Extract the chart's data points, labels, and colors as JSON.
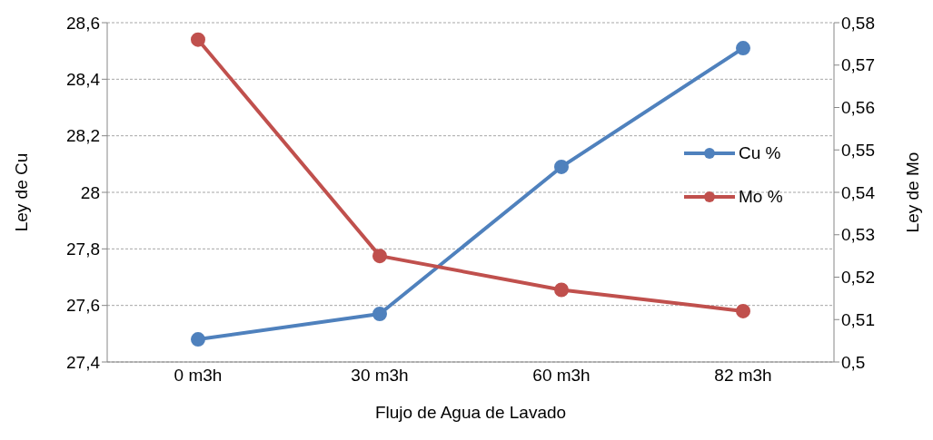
{
  "chart_data": {
    "type": "line",
    "xlabel": "Flujo de Agua de Lavado",
    "ylabel": "Ley de Cu",
    "y2label": "Ley de Mo",
    "categories": [
      "0 m3h",
      "30 m3h",
      "60 m3h",
      "82 m3h"
    ],
    "series": [
      {
        "name": "Cu %",
        "color": "#4f81bd",
        "values": [
          27.48,
          27.57,
          28.09,
          28.51
        ]
      },
      {
        "name": "Mo %",
        "color": "#c0504d",
        "axis": "y2",
        "values": [
          0.576,
          0.525,
          0.517,
          0.512
        ]
      }
    ],
    "ylim": [
      27.4,
      28.6
    ],
    "yticks": [
      {
        "value": 27.4,
        "label": "27,4"
      },
      {
        "value": 27.6,
        "label": "27,6"
      },
      {
        "value": 27.8,
        "label": "27,8"
      },
      {
        "value": 28,
        "label": "28"
      },
      {
        "value": 28.2,
        "label": "28,2"
      },
      {
        "value": 28.4,
        "label": "28,4"
      },
      {
        "value": 28.6,
        "label": "28,6"
      }
    ],
    "y2lim": [
      0.5,
      0.58
    ],
    "y2ticks": [
      {
        "value": 0.5,
        "label": "0,5"
      },
      {
        "value": 0.51,
        "label": "0,51"
      },
      {
        "value": 0.52,
        "label": "0,52"
      },
      {
        "value": 0.53,
        "label": "0,53"
      },
      {
        "value": 0.54,
        "label": "0,54"
      },
      {
        "value": 0.55,
        "label": "0,55"
      },
      {
        "value": 0.56,
        "label": "0,56"
      },
      {
        "value": 0.57,
        "label": "0,57"
      },
      {
        "value": 0.58,
        "label": "0,58"
      }
    ],
    "grid": "y",
    "legend": "right",
    "marker": "circle",
    "line_style": "solid"
  }
}
